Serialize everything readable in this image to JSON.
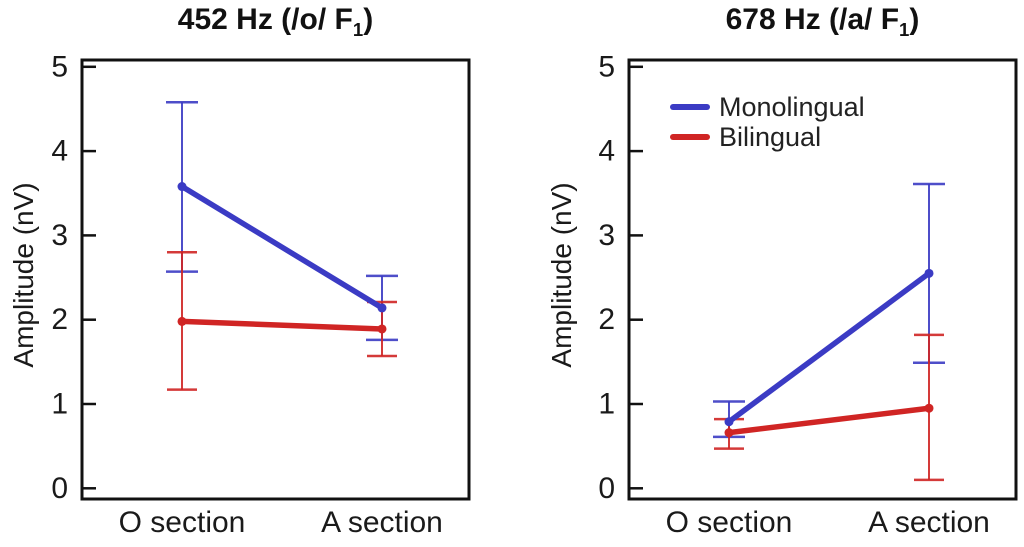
{
  "figure": {
    "y_axis_label": "Amplitude (nV)",
    "colors": {
      "monolingual": "#3b3bc4",
      "bilingual": "#d02524",
      "axis": "#111111",
      "text": "#1a1a1a"
    }
  },
  "chart_data": [
    {
      "type": "line",
      "title": {
        "prefix": "452 Hz (/o/ F",
        "sub": "1",
        "suffix": ")"
      },
      "categories": [
        "O section",
        "A section"
      ],
      "xlabel": "",
      "ylabel": "Amplitude (nV)",
      "ylim": [
        0,
        5
      ],
      "yticks": [
        0,
        1,
        2,
        3,
        4,
        5
      ],
      "grid": false,
      "legend_position": "none",
      "series": [
        {
          "name": "Monolingual",
          "color": "#3b3bc4",
          "values": [
            3.58,
            2.14
          ],
          "error_low": [
            2.57,
            1.76
          ],
          "error_high": [
            4.58,
            2.52
          ]
        },
        {
          "name": "Bilingual",
          "color": "#d02524",
          "values": [
            1.98,
            1.89
          ],
          "error_low": [
            1.17,
            1.57
          ],
          "error_high": [
            2.8,
            2.21
          ]
        }
      ]
    },
    {
      "type": "line",
      "title": {
        "prefix": "678 Hz (/a/ F",
        "sub": "1",
        "suffix": ")"
      },
      "categories": [
        "O section",
        "A section"
      ],
      "xlabel": "",
      "ylabel": "Amplitude (nV)",
      "ylim": [
        0,
        5
      ],
      "yticks": [
        0,
        1,
        2,
        3,
        4,
        5
      ],
      "grid": false,
      "legend_position": "upper-left",
      "series": [
        {
          "name": "Monolingual",
          "color": "#3b3bc4",
          "values": [
            0.79,
            2.55
          ],
          "error_low": [
            0.61,
            1.49
          ],
          "error_high": [
            1.03,
            3.61
          ]
        },
        {
          "name": "Bilingual",
          "color": "#d02524",
          "values": [
            0.66,
            0.95
          ],
          "error_low": [
            0.47,
            0.1
          ],
          "error_high": [
            0.82,
            1.82
          ]
        }
      ]
    }
  ]
}
